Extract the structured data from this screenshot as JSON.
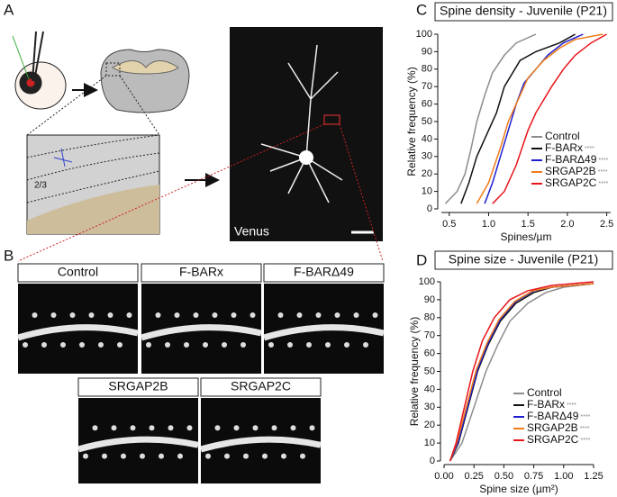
{
  "panels": {
    "a": {
      "letter": "A",
      "layer": "2/3",
      "stain": "Venus"
    },
    "b": {
      "letter": "B",
      "images": [
        "Control",
        "F-BARx",
        "F-BARΔ49",
        "SRGAP2B",
        "SRGAP2C"
      ]
    },
    "c": {
      "letter": "C"
    },
    "d": {
      "letter": "D"
    }
  },
  "chart_data": [
    {
      "type": "line",
      "title": "Spine density - Juvenile (P21)",
      "x_label": "Spines/µm",
      "y_label": "Relative frequency (%)",
      "xlim": [
        0.4,
        2.55
      ],
      "xticks": [
        0.5,
        {
          "value": 1,
          "label": "1.0"
        },
        1.5,
        {
          "value": 2,
          "label": "2.0"
        },
        2.5
      ],
      "ylim": [
        0,
        100
      ],
      "yticks": [
        0,
        10,
        20,
        30,
        40,
        50,
        60,
        70,
        80,
        90,
        100
      ],
      "series": [
        {
          "name": "Control",
          "color": "#8c8c8c",
          "x": [
            0.45,
            0.6,
            0.7,
            0.78,
            0.85,
            0.95,
            1.05,
            1.2,
            1.35,
            1.6
          ],
          "values": [
            3,
            10,
            20,
            35,
            50,
            65,
            78,
            88,
            95,
            100
          ]
        },
        {
          "name": "F-BARx",
          "annotation": "****",
          "color": "#111111",
          "x": [
            0.65,
            0.75,
            0.85,
            1.0,
            1.1,
            1.2,
            1.4,
            1.6,
            1.9,
            2.1
          ],
          "values": [
            3,
            15,
            30,
            45,
            55,
            70,
            85,
            90,
            95,
            100
          ]
        },
        {
          "name": "F-BARΔ49",
          "annotation": "****",
          "color": "#1f1fd0",
          "x": [
            0.95,
            1.05,
            1.15,
            1.25,
            1.35,
            1.45,
            1.6,
            1.75,
            1.95,
            2.2
          ],
          "values": [
            3,
            15,
            30,
            45,
            60,
            72,
            80,
            88,
            95,
            100
          ]
        },
        {
          "name": "SRGAP2B",
          "annotation": "****",
          "color": "#f07d1a",
          "x": [
            0.85,
            1.0,
            1.15,
            1.25,
            1.35,
            1.5,
            1.7,
            1.9,
            2.1,
            2.45
          ],
          "values": [
            3,
            15,
            35,
            50,
            60,
            75,
            85,
            92,
            97,
            100
          ]
        },
        {
          "name": "SRGAP2C",
          "annotation": "****",
          "color": "#e8151b",
          "x": [
            1.05,
            1.2,
            1.35,
            1.5,
            1.6,
            1.8,
            1.95,
            2.1,
            2.3,
            2.5
          ],
          "values": [
            3,
            10,
            25,
            45,
            55,
            70,
            80,
            88,
            95,
            100
          ]
        }
      ]
    },
    {
      "type": "line",
      "title": "Spine size - Juvenile (P21)",
      "x_label": "Spine size (µm²)",
      "y_label": "Relative frequency (%)",
      "xlim": [
        0,
        1.25
      ],
      "xticks": [
        {
          "value": 0,
          "label": "0.00"
        },
        {
          "value": 0.25,
          "label": "0.25"
        },
        {
          "value": 0.5,
          "label": "0.50"
        },
        {
          "value": 0.75,
          "label": "0.75"
        },
        {
          "value": 1,
          "label": "1.00"
        },
        {
          "value": 1.25,
          "label": "1.25"
        }
      ],
      "ylim": [
        0,
        100
      ],
      "yticks": [
        0,
        10,
        20,
        30,
        40,
        50,
        60,
        70,
        80,
        90,
        100
      ],
      "series": [
        {
          "name": "Control",
          "color": "#8c8c8c",
          "x": [
            0.05,
            0.15,
            0.25,
            0.35,
            0.45,
            0.55,
            0.7,
            0.85,
            1.0,
            1.25
          ],
          "values": [
            0,
            10,
            30,
            50,
            65,
            78,
            88,
            94,
            97,
            99
          ]
        },
        {
          "name": "F-BARx",
          "annotation": "****",
          "color": "#111111",
          "x": [
            0.05,
            0.12,
            0.2,
            0.28,
            0.37,
            0.47,
            0.6,
            0.75,
            0.9,
            1.25
          ],
          "values": [
            0,
            10,
            30,
            50,
            65,
            78,
            88,
            94,
            97,
            99
          ]
        },
        {
          "name": "F-BARΔ49",
          "annotation": "****",
          "color": "#1f1fd0",
          "x": [
            0.05,
            0.12,
            0.2,
            0.28,
            0.37,
            0.47,
            0.6,
            0.75,
            0.9,
            1.25
          ],
          "values": [
            0,
            11,
            31,
            51,
            66,
            79,
            89,
            95,
            97,
            99
          ]
        },
        {
          "name": "SRGAP2B",
          "annotation": "****",
          "color": "#f07d1a",
          "x": [
            0.05,
            0.11,
            0.19,
            0.27,
            0.36,
            0.46,
            0.59,
            0.74,
            0.9,
            1.25
          ],
          "values": [
            0,
            11,
            31,
            51,
            66,
            79,
            89,
            95,
            97,
            99
          ]
        },
        {
          "name": "SRGAP2C",
          "annotation": "****",
          "color": "#e8151b",
          "x": [
            0.05,
            0.1,
            0.17,
            0.24,
            0.32,
            0.42,
            0.55,
            0.7,
            0.9,
            1.25
          ],
          "values": [
            0,
            10,
            30,
            50,
            67,
            80,
            90,
            95,
            98,
            100
          ]
        }
      ]
    }
  ]
}
